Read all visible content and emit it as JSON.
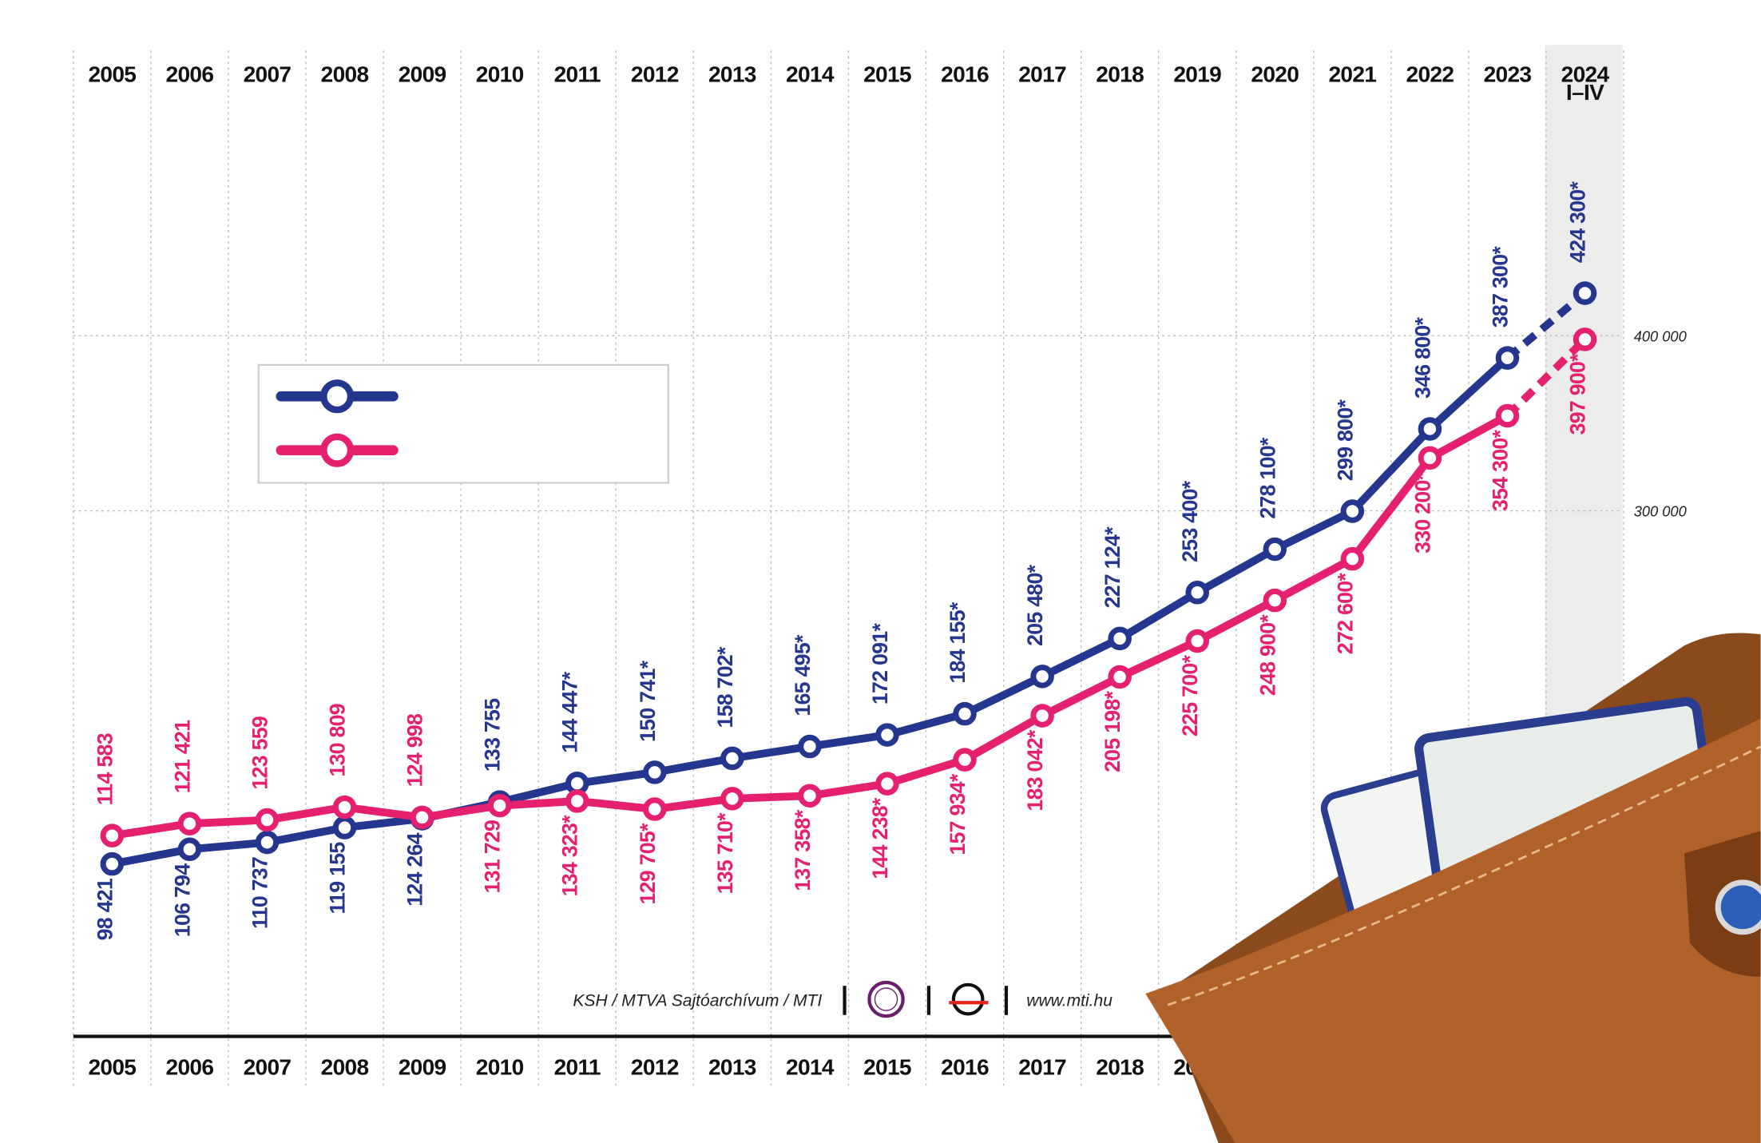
{
  "chart_data": {
    "type": "line",
    "categories": [
      "2005",
      "2006",
      "2007",
      "2008",
      "2009",
      "2010",
      "2011",
      "2012",
      "2013",
      "2014",
      "2015",
      "2016",
      "2017",
      "2018",
      "2019",
      "2020",
      "2021",
      "2022",
      "2023",
      "2024\nI–IV"
    ],
    "series": [
      {
        "color": "#25368f",
        "values": [
          98421,
          106794,
          110737,
          119155,
          124264,
          133755,
          144447,
          150741,
          158702,
          165495,
          172091,
          184155,
          205480,
          227124,
          253400,
          278100,
          299800,
          346800,
          387300,
          424300
        ],
        "value_labels": [
          "98 421",
          "106 794",
          "110 737",
          "119 155",
          "124 264",
          "133 755",
          "144 447*",
          "150 741*",
          "158 702*",
          "165 495*",
          "172 091*",
          "184 155*",
          "205 480*",
          "227 124*",
          "253 400*",
          "278 100*",
          "299 800*",
          "346 800*",
          "387 300*",
          "424 300*"
        ]
      },
      {
        "color": "#e5206f",
        "values": [
          114583,
          121421,
          123559,
          130809,
          124998,
          131729,
          134323,
          129705,
          135710,
          137358,
          144238,
          157934,
          183042,
          205198,
          225700,
          248900,
          272600,
          330200,
          354300,
          397900
        ],
        "value_labels": [
          "114 583",
          "121 421",
          "123 559",
          "130 809",
          "124 998",
          "131 729",
          "134 323*",
          "129 705*",
          "135 710*",
          "137 358*",
          "144 238*",
          "157 934*",
          "183 042*",
          "205 198*",
          "225 700*",
          "248 900*",
          "272 600*",
          "330 200*",
          "354 300*",
          "397 900*"
        ]
      }
    ],
    "ylim": [
      0,
      560000
    ],
    "yticks": [
      {
        "value": 300000,
        "label": "300 000"
      },
      {
        "value": 400000,
        "label": "400 000"
      }
    ],
    "grid": true,
    "dashed_last_segment": true,
    "source": "KSH / MTVA Sajtóarchívum / MTI",
    "website": "www.mti.hu"
  }
}
